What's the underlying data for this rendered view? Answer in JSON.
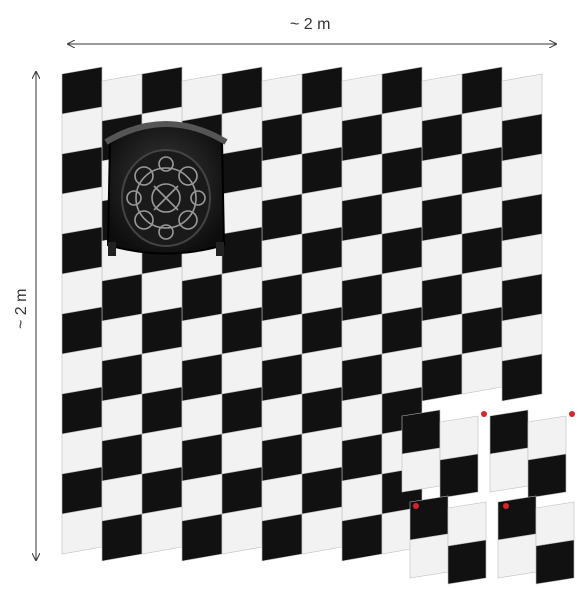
{
  "dimensions": {
    "width_label": "~ 2 m",
    "height_label": "~ 2 m"
  },
  "colors": {
    "tile_dark": "#111111",
    "tile_light": "#f2f2f2",
    "grout": "#bdbdbd",
    "marker": "#d8232a",
    "arrow": "#333333"
  },
  "objects": {
    "chair": "chair-top-view",
    "loose_tiles": 4
  }
}
